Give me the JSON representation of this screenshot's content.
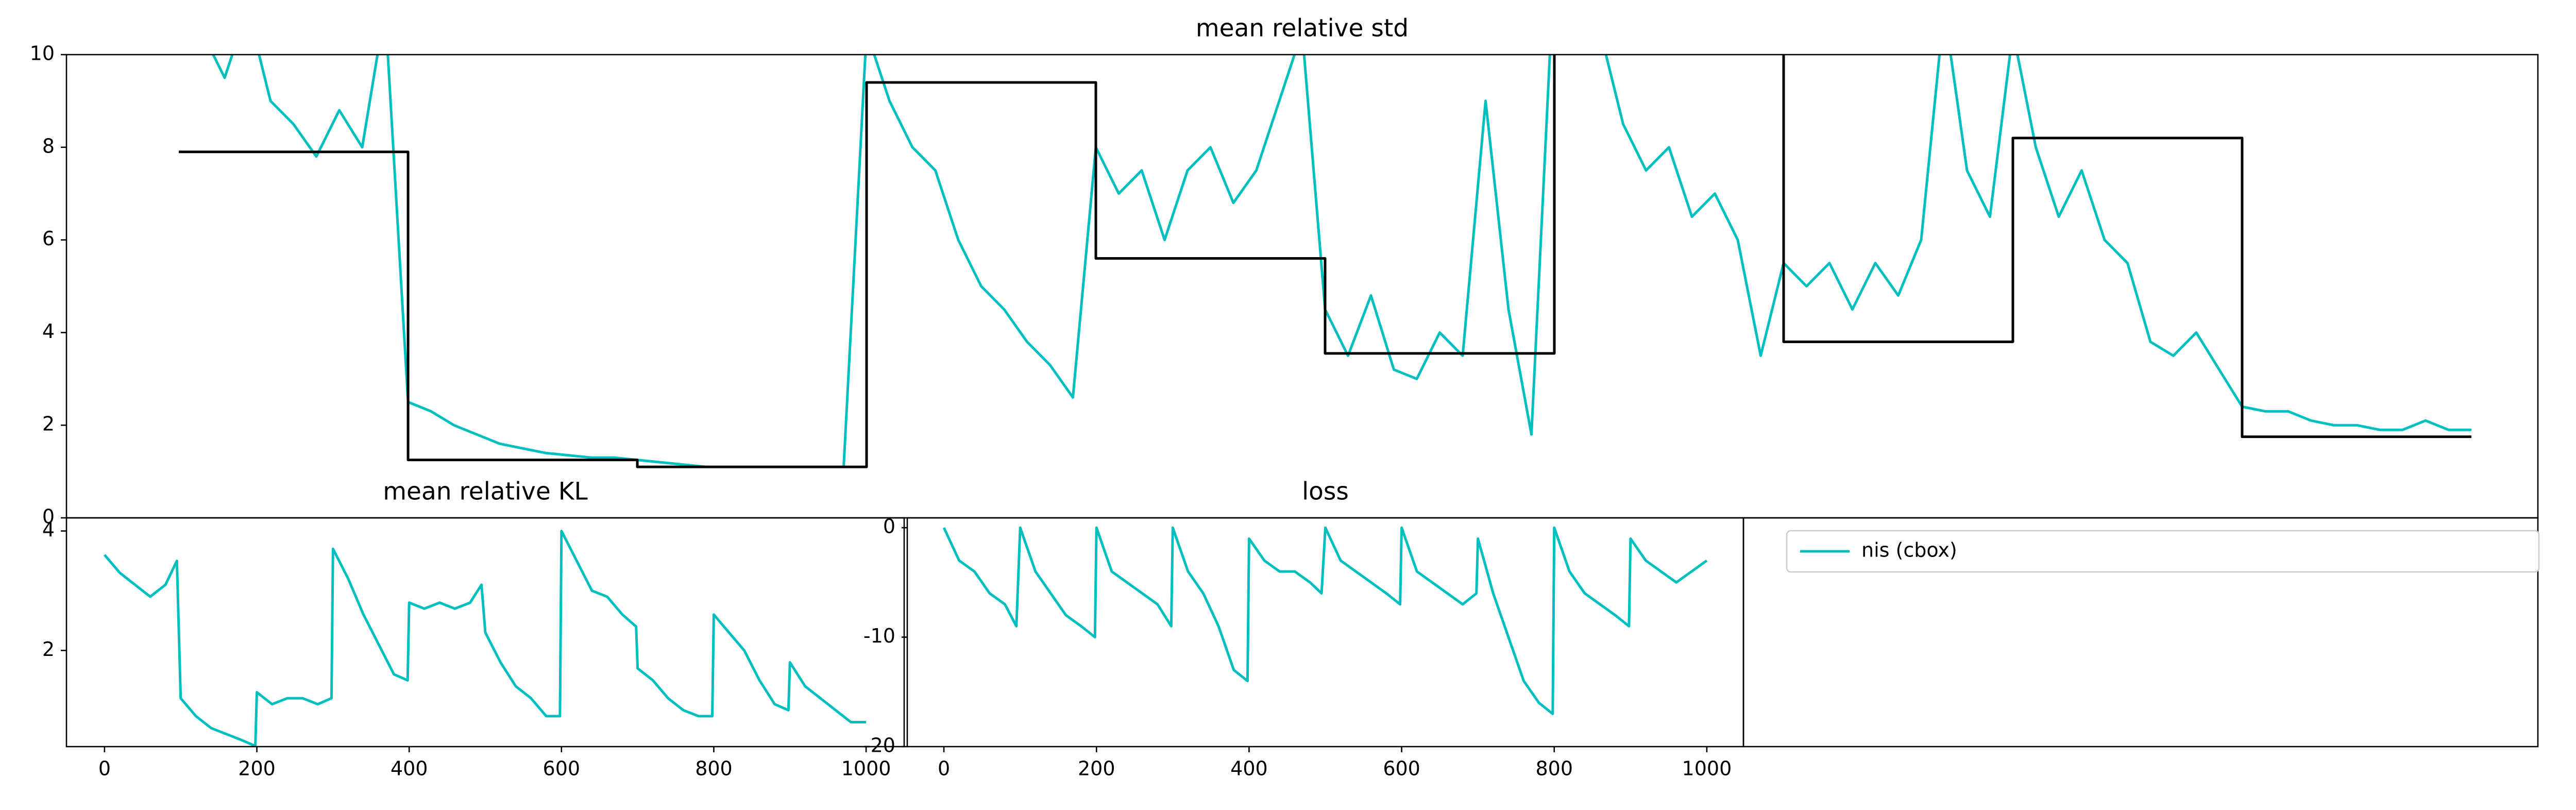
{
  "chart_data": [
    {
      "type": "line",
      "title": "mean relative std",
      "x": [
        100,
        110,
        120,
        130,
        140,
        150,
        160,
        170,
        180,
        190,
        200,
        210,
        220,
        230,
        240,
        250,
        260,
        270,
        280,
        290,
        300,
        310,
        320,
        330,
        340,
        350,
        360,
        370,
        380,
        390,
        400,
        410,
        420,
        430,
        440,
        450,
        460,
        470,
        480,
        490,
        500,
        510,
        520,
        530,
        540,
        550,
        560,
        570,
        580,
        590,
        600,
        610,
        620,
        630,
        640,
        650,
        660,
        670,
        680,
        690,
        700,
        710,
        720,
        730,
        740,
        750,
        760,
        770,
        780,
        790,
        800,
        810,
        820,
        830,
        840,
        850,
        860,
        870,
        880,
        890,
        900,
        910,
        920,
        930,
        940,
        950,
        960,
        970,
        980,
        990,
        1000,
        1010,
        1020,
        1030,
        1040,
        1050,
        1060,
        1070,
        1080,
        1090,
        1100
      ],
      "series": [
        {
          "name": "nis (cbox)",
          "color": "#00bfbf",
          "values": [
            12,
            10.5,
            9.5,
            11,
            9,
            8.5,
            7.8,
            8.8,
            8,
            11,
            2.5,
            2.3,
            2.0,
            1.8,
            1.6,
            1.5,
            1.4,
            1.35,
            1.3,
            1.3,
            1.25,
            1.2,
            1.15,
            1.1,
            1.1,
            1.1,
            1.1,
            1.1,
            1.1,
            1.1,
            10.5,
            9,
            8,
            7.5,
            6,
            5,
            4.5,
            3.8,
            3.3,
            2.6,
            8,
            7,
            7.5,
            6,
            7.5,
            8,
            6.8,
            7.5,
            9,
            10.5,
            4.5,
            3.5,
            4.8,
            3.2,
            3.0,
            4,
            3.5,
            9,
            4.5,
            1.8,
            12,
            11,
            10.5,
            8.5,
            7.5,
            8,
            6.5,
            7,
            6,
            3.5,
            5.5,
            5,
            5.5,
            4.5,
            5.5,
            4.8,
            6,
            11,
            7.5,
            6.5,
            10.5,
            8,
            6.5,
            7.5,
            6,
            5.5,
            3.8,
            3.5,
            4,
            3.2,
            2.4,
            2.3,
            2.3,
            2.1,
            2.0,
            2.0,
            1.9,
            1.9,
            2.1,
            1.9,
            1.9
          ]
        },
        {
          "color": "#000000",
          "step": "post",
          "x": [
            100,
            200,
            300,
            400,
            500,
            600,
            700,
            800,
            900,
            1000,
            1100
          ],
          "values": [
            7.9,
            1.25,
            1.1,
            9.4,
            5.6,
            3.55,
            12,
            3.8,
            8.2,
            1.75,
            1.75
          ]
        }
      ],
      "xlim": [
        51,
        1129
      ],
      "ylim": [
        0,
        10
      ],
      "yticks": [
        0,
        2,
        4,
        6,
        8,
        10
      ],
      "legend": "upper left"
    },
    {
      "type": "line",
      "title": "mean relative KL",
      "color": "#00bfbf",
      "x": [
        0,
        20,
        40,
        60,
        80,
        95,
        100,
        120,
        140,
        160,
        180,
        198,
        200,
        220,
        240,
        260,
        280,
        298,
        300,
        320,
        340,
        360,
        380,
        398,
        400,
        420,
        440,
        460,
        480,
        495,
        500,
        520,
        540,
        560,
        580,
        598,
        600,
        620,
        640,
        660,
        680,
        698,
        700,
        720,
        740,
        760,
        780,
        798,
        800,
        820,
        840,
        860,
        880,
        898,
        900,
        920,
        940,
        960,
        980,
        1000
      ],
      "values": [
        3.6,
        3.3,
        3.1,
        2.9,
        3.1,
        3.5,
        1.2,
        0.9,
        0.7,
        0.6,
        0.5,
        0.4,
        1.3,
        1.1,
        1.2,
        1.2,
        1.1,
        1.2,
        3.7,
        3.2,
        2.6,
        2.1,
        1.6,
        1.5,
        2.8,
        2.7,
        2.8,
        2.7,
        2.8,
        3.1,
        2.3,
        1.8,
        1.4,
        1.2,
        0.9,
        0.9,
        4.0,
        3.5,
        3.0,
        2.9,
        2.6,
        2.4,
        1.7,
        1.5,
        1.2,
        1.0,
        0.9,
        0.9,
        2.6,
        2.3,
        2.0,
        1.5,
        1.1,
        1.0,
        1.8,
        1.4,
        1.2,
        1.0,
        0.8,
        0.8
      ],
      "xlim": [
        -50,
        1050
      ],
      "ylim": [
        0.39,
        4.22
      ],
      "xticks": [
        0,
        200,
        400,
        600,
        800,
        1000
      ],
      "yticks": [
        2,
        4
      ]
    },
    {
      "type": "line",
      "title": "loss",
      "color": "#00bfbf",
      "x": [
        0,
        20,
        40,
        60,
        80,
        95,
        100,
        120,
        140,
        160,
        180,
        198,
        200,
        220,
        240,
        260,
        280,
        298,
        300,
        320,
        340,
        360,
        380,
        398,
        400,
        420,
        440,
        460,
        480,
        495,
        500,
        520,
        540,
        560,
        580,
        598,
        600,
        620,
        640,
        660,
        680,
        698,
        700,
        720,
        740,
        760,
        780,
        798,
        800,
        820,
        840,
        860,
        880,
        898,
        900,
        920,
        940,
        960,
        980,
        1000
      ],
      "values": [
        0,
        -3,
        -4,
        -6,
        -7,
        -9,
        0,
        -4,
        -6,
        -8,
        -9,
        -10,
        0,
        -4,
        -5,
        -6,
        -7,
        -9,
        0,
        -4,
        -6,
        -9,
        -13,
        -14,
        -1,
        -3,
        -4,
        -4,
        -5,
        -6,
        0,
        -3,
        -4,
        -5,
        -6,
        -7,
        0,
        -4,
        -5,
        -6,
        -7,
        -6,
        -1,
        -6,
        -10,
        -14,
        -16,
        -17,
        0,
        -4,
        -6,
        -7,
        -8,
        -9,
        -1,
        -3,
        -4,
        -5,
        -4,
        -3
      ],
      "xlim": [
        -48,
        1048
      ],
      "ylim": [
        -20,
        0.9
      ],
      "xticks": [
        0,
        200,
        400,
        600,
        800,
        1000
      ],
      "yticks": [
        0,
        -10,
        -20
      ]
    }
  ]
}
